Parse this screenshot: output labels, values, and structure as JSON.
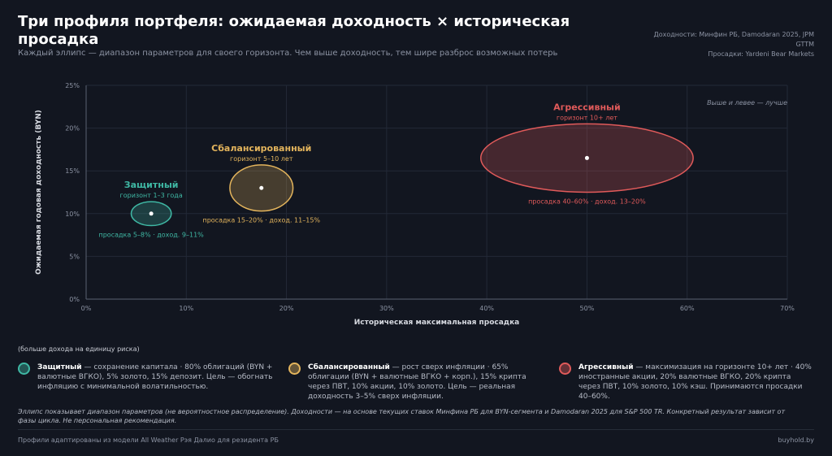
{
  "header": {
    "title": "Три профиля портфеля: ожидаемая доходность × историческая просадка",
    "subtitle": "Каждый эллипс — диапазон параметров для своего горизонта. Чем выше доходность, тем шире разброс возможных потерь",
    "sources": [
      "Доходности: Минфин РБ, Damodaran 2025, JPM",
      "GTTM",
      "Просадки: Yardeni Bear Markets"
    ]
  },
  "chart_data": {
    "type": "scatter",
    "xlabel": "Историческая максимальная просадка",
    "ylabel": "Ожидаемая годовая доходность (BYN)",
    "xlim": [
      0,
      70
    ],
    "ylim": [
      0,
      25
    ],
    "xticks": [
      0,
      10,
      20,
      30,
      40,
      50,
      60,
      70
    ],
    "yticks": [
      0,
      5,
      10,
      15,
      20,
      25
    ],
    "xtick_labels": [
      "0%",
      "10%",
      "20%",
      "30%",
      "40%",
      "50%",
      "60%",
      "70%"
    ],
    "ytick_labels": [
      "0%",
      "5%",
      "10%",
      "15%",
      "20%",
      "25%"
    ],
    "grid": true,
    "corner_note": "Выше и левее — лучше",
    "series": [
      {
        "name": "Защитный",
        "horizon": "горизонт 1–3 года",
        "range_label": "просадка 5–8% · доход. 9–11%",
        "x": 6.5,
        "y": 10,
        "x_range": [
          4.5,
          8.5
        ],
        "y_range": [
          8.6,
          11.4
        ],
        "color": "#3fb8a4"
      },
      {
        "name": "Сбалансированный",
        "horizon": "горизонт 5–10 лет",
        "range_label": "просадка 15–20% · доход. 11–15%",
        "x": 17.5,
        "y": 13,
        "x_range": [
          14.3,
          20.6
        ],
        "y_range": [
          10.3,
          15.7
        ],
        "color": "#e3b45c"
      },
      {
        "name": "Агрессивный",
        "horizon": "горизонт 10+ лет",
        "range_label": "просадка 40–60% · доход. 13–20%",
        "x": 50,
        "y": 16.5,
        "x_range": [
          39.4,
          60.6
        ],
        "y_range": [
          12.5,
          20.5
        ],
        "color": "#e05a5a"
      }
    ]
  },
  "notes": {
    "efficiency_note": "(больше дохода на единицу риска)"
  },
  "legend": [
    {
      "name": "Защитный",
      "text": " — сохранение капитала · 80% облигаций (BYN + валютные ВГКО), 5% золото, 15% депозит. Цель — обогнать инфляцию с минимальной волатильностью.",
      "color": "#3fb8a4"
    },
    {
      "name": "Сбалансированный",
      "text": " — рост сверх инфляции · 65% облигации (BYN + валютные ВГКО + корп.), 15% крипта через ПВТ, 10% акции, 10% золото. Цель — реальная доходность 3–5% сверх инфляции.",
      "color": "#e3b45c"
    },
    {
      "name": "Агрессивный",
      "text": " — максимизация на горизонте 10+ лет · 40% иностранные акции, 20% валютные ВГКО, 20% крипта через ПВТ, 10% золото, 10% кэш. Принимаются просадки 40–60%.",
      "color": "#e05a5a"
    }
  ],
  "disclaimer": "Эллипс показывает диапазон параметров (не вероятностное распределение). Доходности — на основе текущих ставок Минфина РБ для BYN-сегмента и Damodaran 2025 для S&P 500 TR. Конкретный результат зависит от фазы цикла. Не персональная рекомендация.",
  "footer": {
    "left": "Профили адаптированы из модели All Weather Рэя Далио для резидента РБ",
    "right": "buyhold.by"
  }
}
